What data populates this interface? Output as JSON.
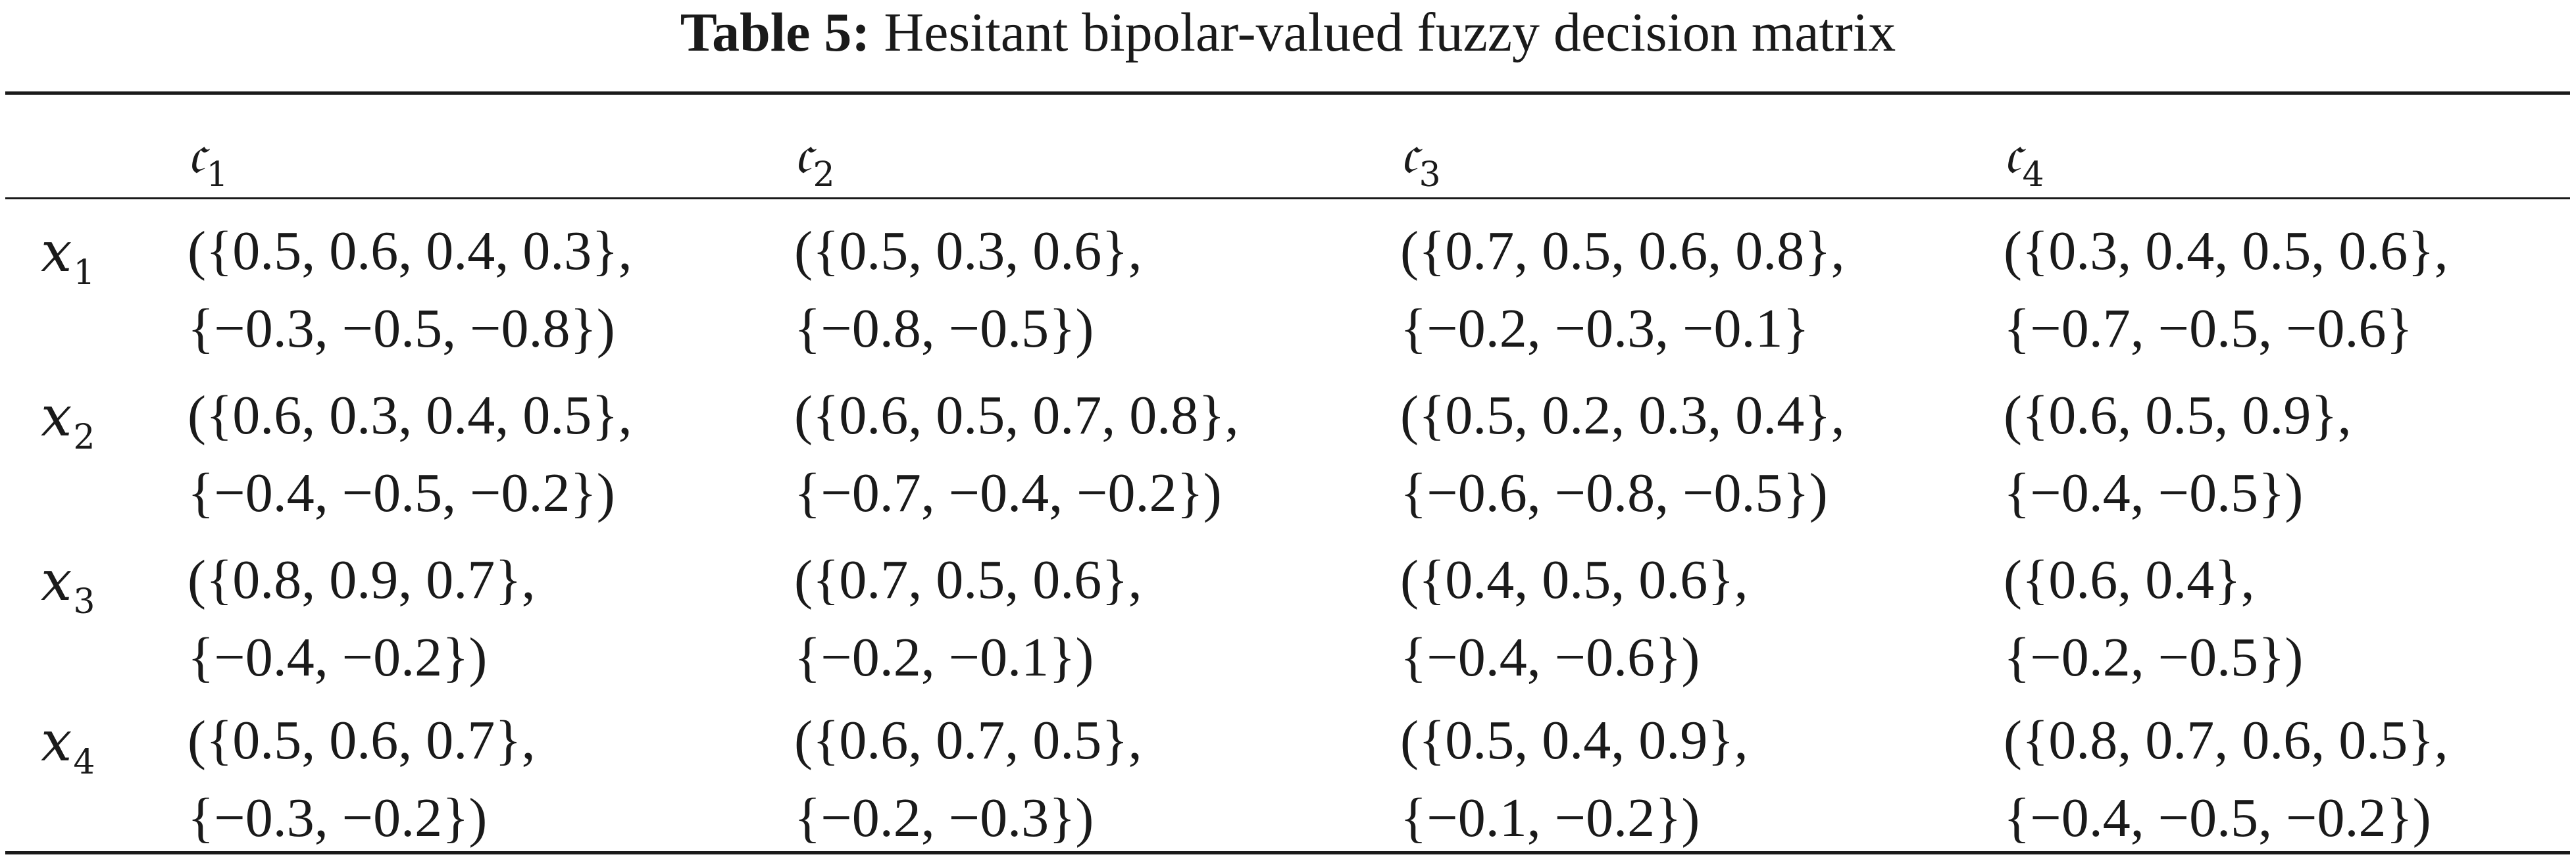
{
  "caption": {
    "label": "Table 5:",
    "text": "Hesitant bipolar-valued fuzzy decision matrix"
  },
  "columns": [
    {
      "sym": "𝔠",
      "sub": "1"
    },
    {
      "sym": "𝔠",
      "sub": "2"
    },
    {
      "sym": "𝔠",
      "sub": "3"
    },
    {
      "sym": "𝔠",
      "sub": "4"
    }
  ],
  "rows": [
    {
      "label": {
        "sym": "x",
        "sub": "1"
      },
      "cells": [
        {
          "pos": "({0.5, 0.6, 0.4, 0.3},",
          "neg": "{−0.3, −0.5, −0.8})"
        },
        {
          "pos": "({0.5, 0.3, 0.6},",
          "neg": "{−0.8, −0.5})"
        },
        {
          "pos": "({0.7, 0.5, 0.6, 0.8},",
          "neg": "{−0.2, −0.3, −0.1}"
        },
        {
          "pos": "({0.3, 0.4, 0.5, 0.6},",
          "neg": "{−0.7, −0.5, −0.6}"
        }
      ]
    },
    {
      "label": {
        "sym": "x",
        "sub": "2"
      },
      "cells": [
        {
          "pos": "({0.6, 0.3, 0.4, 0.5},",
          "neg": "{−0.4, −0.5, −0.2})"
        },
        {
          "pos": "({0.6, 0.5, 0.7, 0.8},",
          "neg": "{−0.7, −0.4, −0.2})"
        },
        {
          "pos": "({0.5, 0.2, 0.3, 0.4},",
          "neg": "{−0.6, −0.8, −0.5})"
        },
        {
          "pos": "({0.6, 0.5, 0.9},",
          "neg": "{−0.4, −0.5})"
        }
      ]
    },
    {
      "label": {
        "sym": "x",
        "sub": "3"
      },
      "cells": [
        {
          "pos": "({0.8, 0.9, 0.7},",
          "neg": "{−0.4, −0.2})"
        },
        {
          "pos": "({0.7, 0.5, 0.6},",
          "neg": "{−0.2, −0.1})"
        },
        {
          "pos": "({0.4, 0.5, 0.6},",
          "neg": "{−0.4, −0.6})"
        },
        {
          "pos": "({0.6, 0.4},",
          "neg": "{−0.2, −0.5})"
        }
      ]
    },
    {
      "label": {
        "sym": "x",
        "sub": "4"
      },
      "cells": [
        {
          "pos": "({0.5, 0.6, 0.7},",
          "neg": "{−0.3, −0.2})"
        },
        {
          "pos": "({0.6, 0.7, 0.5},",
          "neg": "{−0.2, −0.3})"
        },
        {
          "pos": "({0.5, 0.4, 0.9},",
          "neg": "{−0.1, −0.2})"
        },
        {
          "pos": "({0.8, 0.7, 0.6, 0.5},",
          "neg": "{−0.4, −0.5, −0.2})"
        }
      ]
    }
  ]
}
